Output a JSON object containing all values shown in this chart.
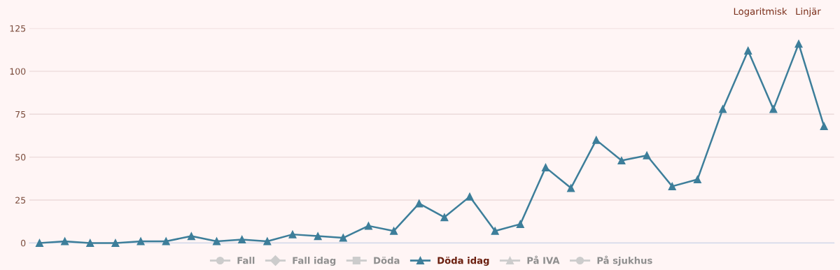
{
  "chart_data": {
    "type": "line",
    "categories": [
      null,
      null,
      null,
      null,
      null,
      null,
      null,
      null,
      null,
      null,
      null,
      null,
      null,
      null,
      null,
      null,
      null,
      null,
      null,
      null,
      null,
      null,
      null,
      null,
      null,
      null,
      null,
      null,
      null,
      null,
      null,
      null
    ],
    "series": [
      {
        "name": "Fall",
        "color": "#cccccc",
        "marker": "circle",
        "values": [
          null,
          null,
          null,
          null,
          null,
          null,
          null,
          null,
          null,
          null,
          null,
          null,
          null,
          null,
          null,
          null,
          null,
          null,
          null,
          null,
          null,
          null,
          null,
          null,
          null,
          null,
          null,
          null,
          null,
          null,
          null,
          null
        ]
      },
      {
        "name": "Fall idag",
        "color": "#cccccc",
        "marker": "diamond",
        "values": [
          null,
          null,
          null,
          null,
          null,
          null,
          null,
          null,
          null,
          null,
          null,
          null,
          null,
          null,
          null,
          null,
          null,
          null,
          null,
          null,
          null,
          null,
          null,
          null,
          null,
          null,
          null,
          null,
          null,
          null,
          null,
          null
        ]
      },
      {
        "name": "Döda",
        "color": "#cccccc",
        "marker": "square",
        "values": [
          null,
          null,
          null,
          null,
          null,
          null,
          null,
          null,
          null,
          null,
          null,
          null,
          null,
          null,
          null,
          null,
          null,
          null,
          null,
          null,
          null,
          null,
          null,
          null,
          null,
          null,
          null,
          null,
          null,
          null,
          null,
          null
        ]
      },
      {
        "name": "Döda idag",
        "color": "#3d7e9a",
        "marker": "triangle",
        "values": [
          0,
          1,
          0,
          0,
          1,
          1,
          4,
          1,
          2,
          1,
          5,
          4,
          3,
          10,
          7,
          23,
          15,
          27,
          7,
          11,
          44,
          32,
          60,
          48,
          51,
          33,
          37,
          78,
          112,
          78,
          116,
          68
        ]
      },
      {
        "name": "På IVA",
        "color": "#cccccc",
        "marker": "triangle",
        "values": [
          null,
          null,
          null,
          null,
          null,
          null,
          null,
          null,
          null,
          null,
          null,
          null,
          null,
          null,
          null,
          null,
          null,
          null,
          null,
          null,
          null,
          null,
          null,
          null,
          null,
          null,
          null,
          null,
          null,
          null,
          null,
          null
        ]
      },
      {
        "name": "På sjukhus",
        "color": "#cccccc",
        "marker": "circle",
        "values": [
          null,
          null,
          null,
          null,
          null,
          null,
          null,
          null,
          null,
          null,
          null,
          null,
          null,
          null,
          null,
          null,
          null,
          null,
          null,
          null,
          null,
          null,
          null,
          null,
          null,
          null,
          null,
          null,
          null,
          null,
          null,
          null
        ]
      }
    ],
    "ylim": [
      0,
      125
    ],
    "yticks": [
      0,
      25,
      50,
      75,
      100,
      125
    ],
    "grid": "y",
    "legend": "bottom",
    "tick_labels": "y",
    "line_style": "solid",
    "annotations": [
      "Logaritmisk",
      "Linjär"
    ]
  }
}
